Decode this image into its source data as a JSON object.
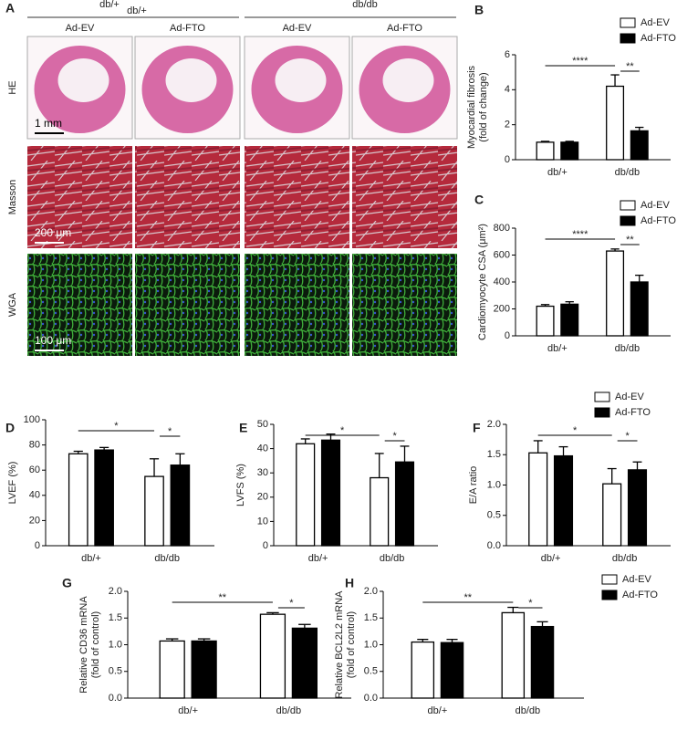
{
  "panel_a": {
    "label": "A",
    "group_labels": [
      "db/+",
      "db/+",
      "db/db"
    ],
    "columns": [
      "Ad-EV",
      "Ad-FTO",
      "Ad-EV",
      "Ad-FTO"
    ],
    "rows": [
      "HE",
      "Masson",
      "WGA"
    ],
    "scale_bars": [
      "1 mm",
      "200 μm",
      "100 μm"
    ]
  },
  "chart_data": [
    {
      "type": "bar",
      "panel": "B",
      "ylabel": [
        "Myocardial fibrosis",
        "(fold of change)"
      ],
      "categories": [
        "db/+",
        "db/db"
      ],
      "series": [
        {
          "name": "Ad-EV",
          "color": "#ffffff",
          "values": [
            1.0,
            4.2
          ],
          "errors": [
            0.05,
            0.65
          ]
        },
        {
          "name": "Ad-FTO",
          "color": "#000000",
          "values": [
            1.0,
            1.65
          ],
          "errors": [
            0.05,
            0.2
          ]
        }
      ],
      "ylim": [
        0,
        6
      ],
      "yticks": [
        0,
        2,
        4,
        6
      ],
      "legend": true,
      "annotations": [
        "****",
        "**"
      ]
    },
    {
      "type": "bar",
      "panel": "C",
      "ylabel": [
        "Cardiomyocyte CSA (μm²)"
      ],
      "categories": [
        "db/+",
        "db/db"
      ],
      "series": [
        {
          "name": "Ad-EV",
          "color": "#ffffff",
          "values": [
            220,
            630
          ],
          "errors": [
            12,
            15
          ]
        },
        {
          "name": "Ad-FTO",
          "color": "#000000",
          "values": [
            235,
            400
          ],
          "errors": [
            18,
            50
          ]
        }
      ],
      "ylim": [
        0,
        800
      ],
      "yticks": [
        0,
        200,
        400,
        600,
        800
      ],
      "legend": true,
      "annotations": [
        "****",
        "**"
      ]
    },
    {
      "type": "bar",
      "panel": "D",
      "ylabel": [
        "LVEF (%)"
      ],
      "categories": [
        "db/+",
        "db/db"
      ],
      "series": [
        {
          "color": "#ffffff",
          "values": [
            73,
            55
          ],
          "errors": [
            2,
            14
          ]
        },
        {
          "color": "#000000",
          "values": [
            76,
            64
          ],
          "errors": [
            2,
            9
          ]
        }
      ],
      "ylim": [
        0,
        100
      ],
      "yticks": [
        0,
        20,
        40,
        60,
        80,
        100
      ],
      "legend": false,
      "annotations": [
        "*",
        "*"
      ]
    },
    {
      "type": "bar",
      "panel": "E",
      "ylabel": [
        "LVFS (%)"
      ],
      "categories": [
        "db/+",
        "db/db"
      ],
      "series": [
        {
          "color": "#ffffff",
          "values": [
            42,
            28
          ],
          "errors": [
            2,
            10
          ]
        },
        {
          "color": "#000000",
          "values": [
            43.5,
            34.5
          ],
          "errors": [
            2.5,
            6.5
          ]
        }
      ],
      "ylim": [
        0,
        50
      ],
      "yticks": [
        0,
        10,
        20,
        30,
        40,
        50
      ],
      "legend": false,
      "annotations": [
        "*",
        "*"
      ]
    },
    {
      "type": "bar",
      "panel": "F",
      "ylabel": [
        "E/A ratio"
      ],
      "categories": [
        "db/+",
        "db/db"
      ],
      "series": [
        {
          "name": "Ad-EV",
          "color": "#ffffff",
          "values": [
            1.53,
            1.02
          ],
          "errors": [
            0.2,
            0.25
          ]
        },
        {
          "name": "Ad-FTO",
          "color": "#000000",
          "values": [
            1.48,
            1.25
          ],
          "errors": [
            0.15,
            0.13
          ]
        }
      ],
      "ylim": [
        0,
        2
      ],
      "yticks": [
        {
          "value": 0,
          "label": "0.0"
        },
        0.5,
        {
          "value": 1,
          "label": "1.0"
        },
        1.5,
        {
          "value": 2,
          "label": "2.0"
        }
      ],
      "legend": true,
      "annotations": [
        "*",
        "*"
      ]
    },
    {
      "type": "bar",
      "panel": "G",
      "ylabel": [
        "Relative CD36 mRNA",
        "(fold of control)"
      ],
      "categories": [
        "db/+",
        "db/db"
      ],
      "series": [
        {
          "color": "#ffffff",
          "values": [
            1.07,
            1.57
          ],
          "errors": [
            0.04,
            0.03
          ]
        },
        {
          "color": "#000000",
          "values": [
            1.07,
            1.31
          ],
          "errors": [
            0.04,
            0.07
          ]
        }
      ],
      "ylim": [
        0,
        2
      ],
      "yticks": [
        {
          "value": 0,
          "label": "0.0"
        },
        0.5,
        {
          "value": 1,
          "label": "1.0"
        },
        1.5,
        {
          "value": 2,
          "label": "2.0"
        }
      ],
      "legend": false,
      "annotations": [
        "**",
        "*"
      ]
    },
    {
      "type": "bar",
      "panel": "H",
      "ylabel": [
        "Relative  BCL2L2 mRNA",
        "(fold of control)"
      ],
      "categories": [
        "db/+",
        "db/db"
      ],
      "series": [
        {
          "name": "Ad-EV",
          "color": "#ffffff",
          "values": [
            1.05,
            1.6
          ],
          "errors": [
            0.05,
            0.1
          ]
        },
        {
          "name": "Ad-FTO",
          "color": "#000000",
          "values": [
            1.04,
            1.34
          ],
          "errors": [
            0.06,
            0.09
          ]
        }
      ],
      "ylim": [
        0,
        2
      ],
      "yticks": [
        {
          "value": 0,
          "label": "0.0"
        },
        0.5,
        {
          "value": 1,
          "label": "1.0"
        },
        1.5,
        {
          "value": 2,
          "label": "2.0"
        }
      ],
      "legend": true,
      "annotations": [
        "**",
        "*"
      ]
    }
  ]
}
